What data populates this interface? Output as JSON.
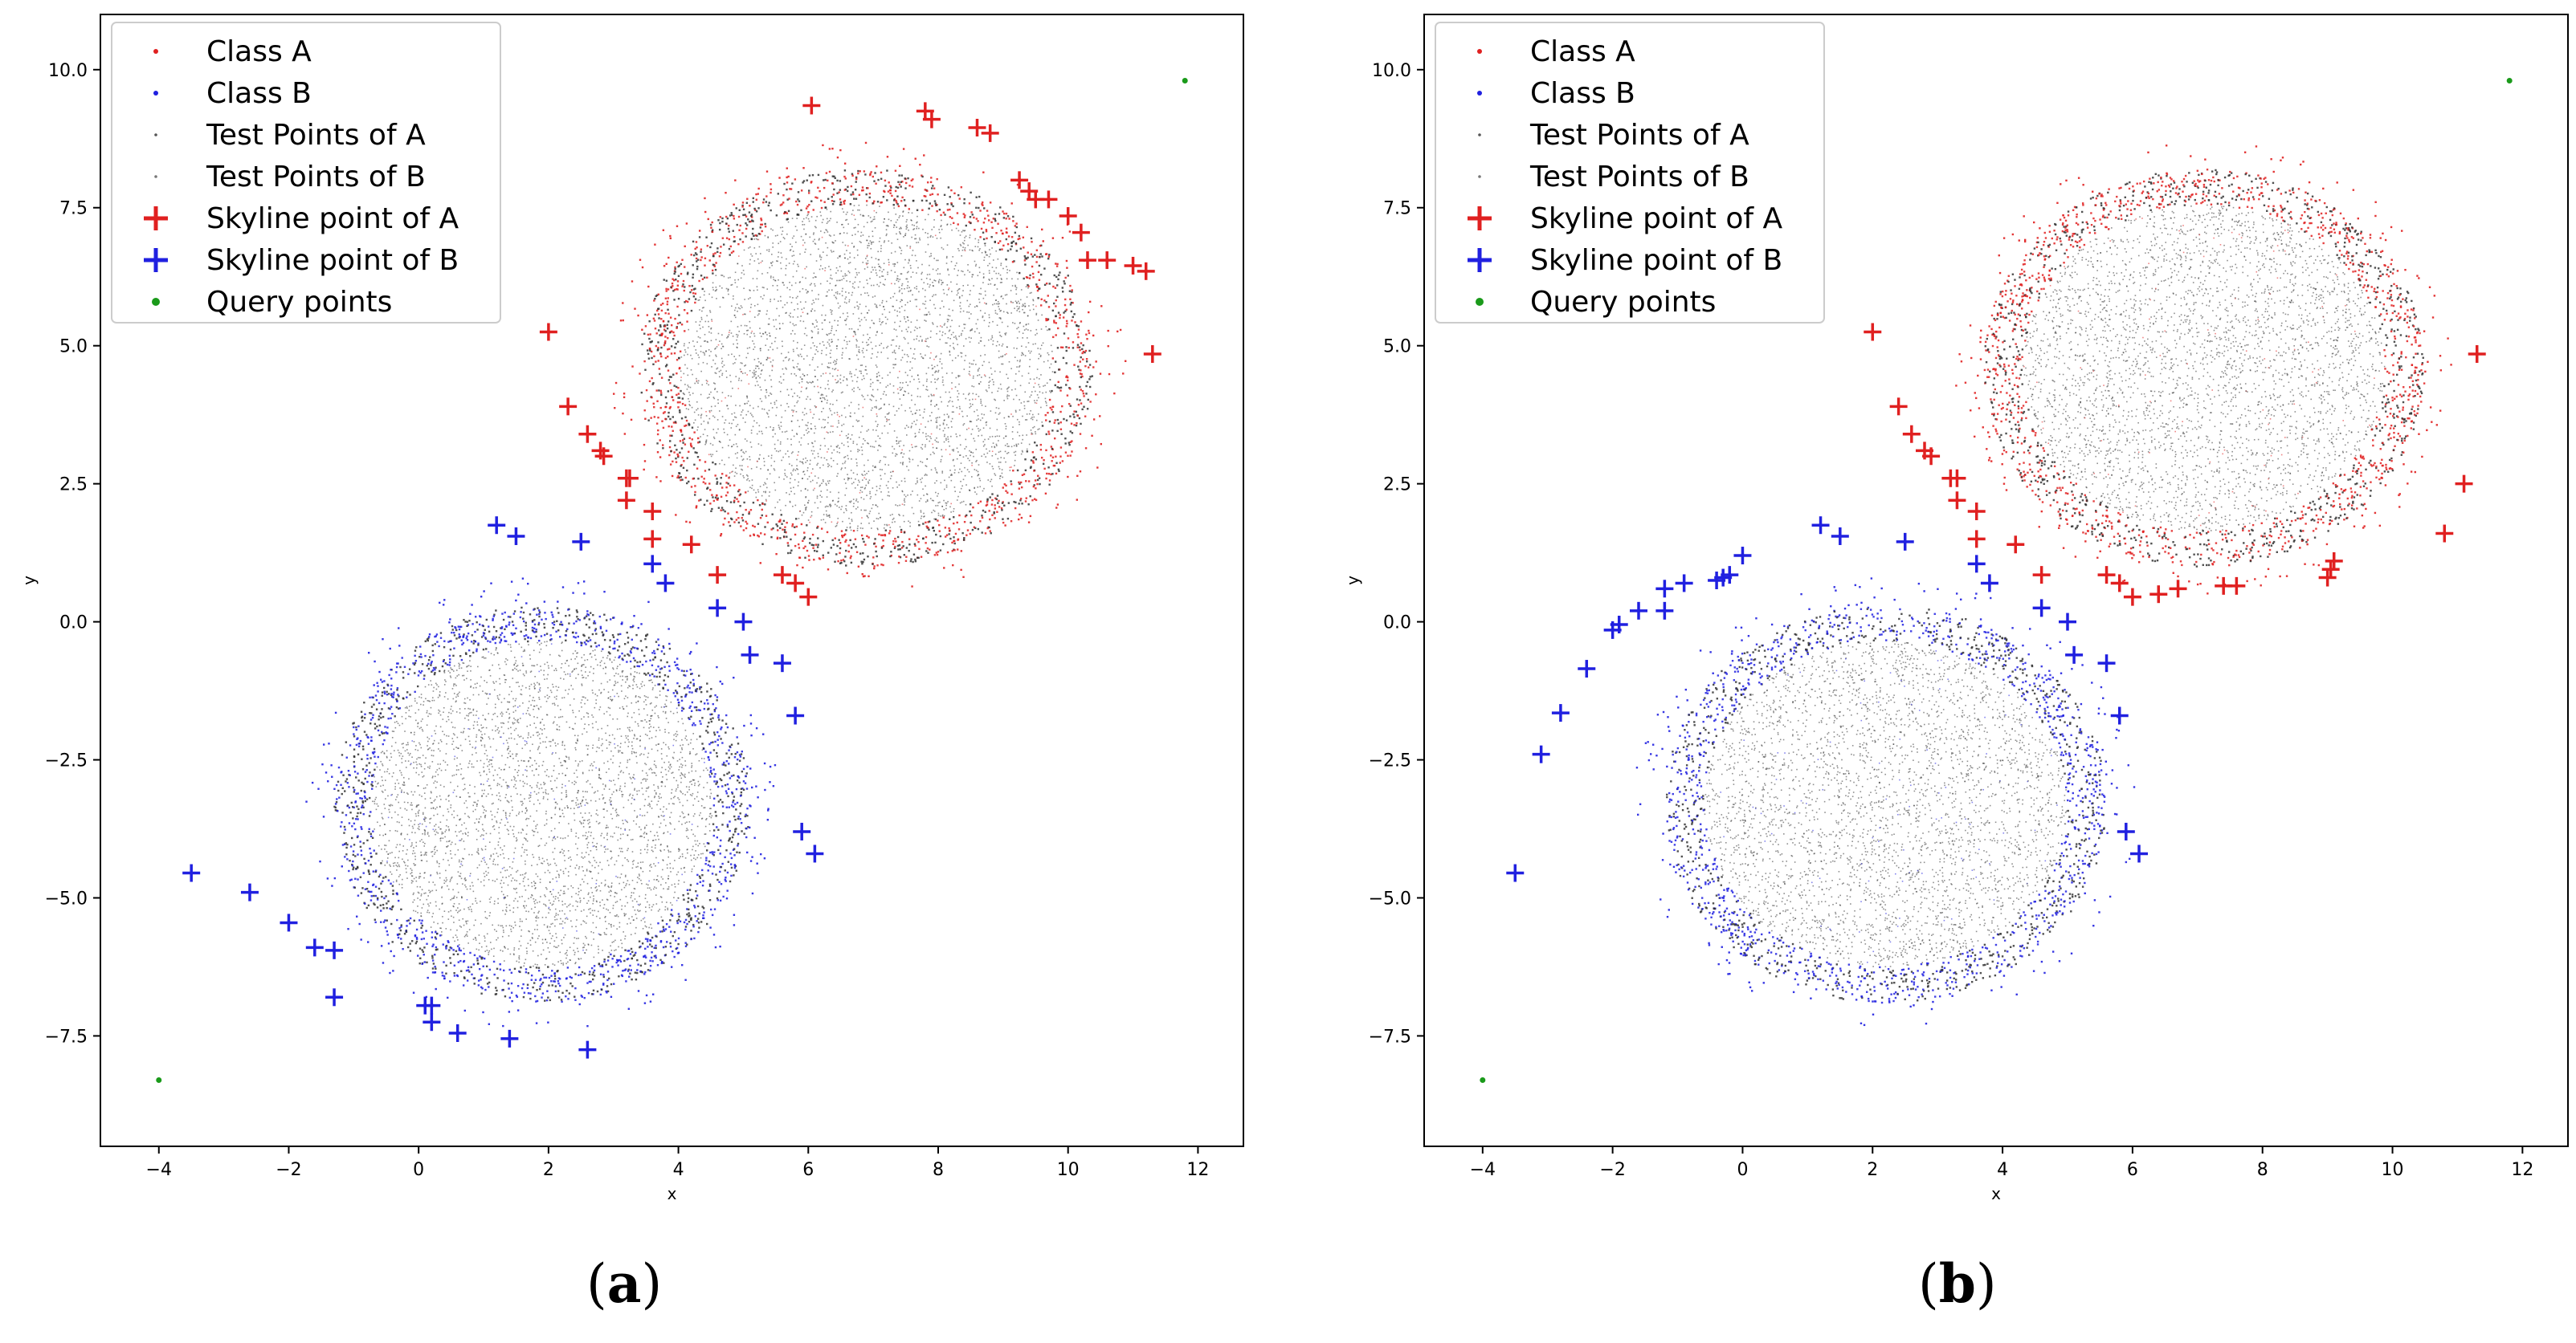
{
  "figure": {
    "panel_labels": [
      {
        "open": "(",
        "letter": "a",
        "close": ")"
      },
      {
        "open": "(",
        "letter": "b",
        "close": ")"
      }
    ]
  },
  "colors": {
    "class_a": "#e02020",
    "class_b": "#2020e0",
    "test_points": "#333333",
    "query": "#1a9a1a",
    "axes": "#000000"
  },
  "chart_data": [
    {
      "type": "scatter",
      "panel": "a",
      "xlabel": "x",
      "ylabel": "y",
      "xlim": [
        -4.9,
        12.7
      ],
      "ylim": [
        -9.5,
        11.0
      ],
      "xticks": [
        -4,
        -2,
        0,
        2,
        4,
        6,
        8,
        10,
        12
      ],
      "yticks": [
        -7.5,
        -5.0,
        -2.5,
        0.0,
        2.5,
        5.0,
        7.5,
        10.0
      ],
      "legend_position": "upper-left",
      "legend": [
        {
          "label": "Class A",
          "marker": "dot",
          "color": "#e02020"
        },
        {
          "label": "Class B",
          "marker": "dot",
          "color": "#2020e0"
        },
        {
          "label": "Test Points of A",
          "marker": "dot",
          "color": "#555555"
        },
        {
          "label": "Test Points of B",
          "marker": "dot",
          "color": "#777777"
        },
        {
          "label": "Skyline point of A",
          "marker": "plus",
          "color": "#e02020"
        },
        {
          "label": "Skyline point of B",
          "marker": "plus",
          "color": "#2020e0"
        },
        {
          "label": "Query points",
          "marker": "star",
          "color": "#1a9a1a"
        }
      ],
      "clusters": [
        {
          "name": "Class A",
          "center": [
            6.9,
            4.6
          ],
          "radius": [
            3.5,
            3.6
          ],
          "color": "#e02020",
          "test_color": "#333333"
        },
        {
          "name": "Class B",
          "center": [
            1.9,
            -3.3
          ],
          "radius": [
            3.2,
            3.6
          ],
          "color": "#2020e0",
          "test_color": "#333333"
        }
      ],
      "skyline_a": [
        [
          2.0,
          5.25
        ],
        [
          2.3,
          3.9
        ],
        [
          2.6,
          3.4
        ],
        [
          2.8,
          3.1
        ],
        [
          2.85,
          3.0
        ],
        [
          3.2,
          2.6
        ],
        [
          3.25,
          2.6
        ],
        [
          3.2,
          2.2
        ],
        [
          3.6,
          2.0
        ],
        [
          3.6,
          1.5
        ],
        [
          4.2,
          1.4
        ],
        [
          4.6,
          0.85
        ],
        [
          5.6,
          0.85
        ],
        [
          5.8,
          0.7
        ],
        [
          6.0,
          0.45
        ],
        [
          6.05,
          9.35
        ],
        [
          7.8,
          9.25
        ],
        [
          7.9,
          9.1
        ],
        [
          8.6,
          8.95
        ],
        [
          8.8,
          8.85
        ],
        [
          9.25,
          8.0
        ],
        [
          9.4,
          7.8
        ],
        [
          9.5,
          7.65
        ],
        [
          9.7,
          7.65
        ],
        [
          10.0,
          7.35
        ],
        [
          10.2,
          7.05
        ],
        [
          10.3,
          6.55
        ],
        [
          10.6,
          6.55
        ],
        [
          11.0,
          6.45
        ],
        [
          11.2,
          6.35
        ],
        [
          11.3,
          4.85
        ]
      ],
      "skyline_b": [
        [
          1.2,
          1.75
        ],
        [
          1.5,
          1.55
        ],
        [
          2.5,
          1.45
        ],
        [
          3.6,
          1.05
        ],
        [
          3.8,
          0.7
        ],
        [
          4.6,
          0.25
        ],
        [
          5.0,
          0.0
        ],
        [
          5.1,
          -0.6
        ],
        [
          5.6,
          -0.75
        ],
        [
          5.8,
          -1.7
        ],
        [
          5.9,
          -3.8
        ],
        [
          6.1,
          -4.2
        ],
        [
          -3.5,
          -4.55
        ],
        [
          -2.6,
          -4.9
        ],
        [
          -2.0,
          -5.45
        ],
        [
          -1.6,
          -5.9
        ],
        [
          -1.3,
          -5.95
        ],
        [
          -1.3,
          -6.8
        ],
        [
          0.1,
          -6.95
        ],
        [
          0.2,
          -6.95
        ],
        [
          0.2,
          -7.25
        ],
        [
          0.6,
          -7.45
        ],
        [
          1.4,
          -7.55
        ],
        [
          2.6,
          -7.75
        ]
      ],
      "query_points": [
        [
          -4.0,
          -8.3
        ],
        [
          11.8,
          9.8
        ]
      ]
    },
    {
      "type": "scatter",
      "panel": "b",
      "xlabel": "x",
      "ylabel": "y",
      "xlim": [
        -4.9,
        12.7
      ],
      "ylim": [
        -9.5,
        11.0
      ],
      "xticks": [
        -4,
        -2,
        0,
        2,
        4,
        6,
        8,
        10,
        12
      ],
      "yticks": [
        -7.5,
        -5.0,
        -2.5,
        0.0,
        2.5,
        5.0,
        7.5,
        10.0
      ],
      "legend_position": "upper-left",
      "legend": [
        {
          "label": "Class A",
          "marker": "dot",
          "color": "#e02020"
        },
        {
          "label": "Class B",
          "marker": "dot",
          "color": "#2020e0"
        },
        {
          "label": "Test Points of A",
          "marker": "dot",
          "color": "#555555"
        },
        {
          "label": "Test Points of B",
          "marker": "dot",
          "color": "#777777"
        },
        {
          "label": "Skyline point of A",
          "marker": "plus",
          "color": "#e02020"
        },
        {
          "label": "Skyline point of B",
          "marker": "plus",
          "color": "#2020e0"
        },
        {
          "label": "Query points",
          "marker": "star",
          "color": "#1a9a1a"
        }
      ],
      "clusters": [
        {
          "name": "Class A",
          "center": [
            7.1,
            4.6
          ],
          "radius": [
            3.4,
            3.6
          ],
          "color": "#e02020",
          "test_color": "#333333"
        },
        {
          "name": "Class B",
          "center": [
            2.2,
            -3.3
          ],
          "radius": [
            3.4,
            3.6
          ],
          "color": "#2020e0",
          "test_color": "#333333"
        }
      ],
      "skyline_a": [
        [
          2.0,
          5.25
        ],
        [
          2.4,
          3.9
        ],
        [
          2.6,
          3.4
        ],
        [
          2.8,
          3.1
        ],
        [
          2.9,
          3.0
        ],
        [
          3.2,
          2.6
        ],
        [
          3.3,
          2.6
        ],
        [
          3.3,
          2.2
        ],
        [
          3.6,
          2.0
        ],
        [
          3.6,
          1.5
        ],
        [
          4.2,
          1.4
        ],
        [
          4.6,
          0.85
        ],
        [
          5.6,
          0.85
        ],
        [
          5.8,
          0.7
        ],
        [
          6.0,
          0.45
        ],
        [
          6.4,
          0.5
        ],
        [
          6.7,
          0.6
        ],
        [
          7.4,
          0.65
        ],
        [
          7.6,
          0.65
        ],
        [
          9.0,
          0.8
        ],
        [
          9.05,
          0.95
        ],
        [
          9.1,
          1.1
        ],
        [
          10.8,
          1.6
        ],
        [
          11.1,
          2.5
        ],
        [
          11.3,
          4.85
        ]
      ],
      "skyline_b": [
        [
          1.2,
          1.75
        ],
        [
          1.5,
          1.55
        ],
        [
          2.5,
          1.45
        ],
        [
          3.6,
          1.05
        ],
        [
          3.8,
          0.7
        ],
        [
          4.6,
          0.25
        ],
        [
          5.0,
          0.0
        ],
        [
          5.1,
          -0.6
        ],
        [
          5.6,
          -0.75
        ],
        [
          5.8,
          -1.7
        ],
        [
          5.9,
          -3.8
        ],
        [
          6.1,
          -4.2
        ],
        [
          -3.5,
          -4.55
        ],
        [
          -3.1,
          -2.4
        ],
        [
          -2.8,
          -1.65
        ],
        [
          -2.4,
          -0.85
        ],
        [
          -2.0,
          -0.15
        ],
        [
          -1.9,
          -0.05
        ],
        [
          -1.6,
          0.2
        ],
        [
          -1.2,
          0.2
        ],
        [
          -1.2,
          0.6
        ],
        [
          -0.9,
          0.7
        ],
        [
          -0.4,
          0.75
        ],
        [
          -0.3,
          0.8
        ],
        [
          -0.2,
          0.85
        ],
        [
          0.0,
          1.2
        ]
      ],
      "query_points": [
        [
          -4.0,
          -8.3
        ],
        [
          11.8,
          9.8
        ]
      ]
    }
  ]
}
